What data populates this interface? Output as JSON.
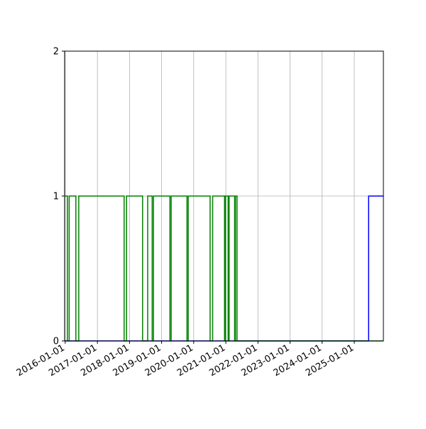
{
  "chart_data": {
    "type": "line",
    "step": "post",
    "title": "",
    "xlabel": "",
    "ylabel": "",
    "x_type": "date",
    "xlim": [
      "2015-12-25",
      "2025-11-28"
    ],
    "ylim": [
      0,
      2
    ],
    "grid": true,
    "x_tick_labels": [
      "2016-01-01",
      "2017-01-01",
      "2018-01-01",
      "2019-01-01",
      "2020-01-01",
      "2021-01-01",
      "2022-01-01",
      "2023-01-01",
      "2024-01-01",
      "2025-01-01"
    ],
    "y_tick_labels": [
      "0",
      "1",
      "2"
    ],
    "series": [
      {
        "color": "#0000ff",
        "points": [
          [
            "2015-12-25",
            0
          ],
          [
            "2025-06-13",
            1
          ],
          [
            "2025-11-28",
            1
          ]
        ]
      },
      {
        "color": "#008000",
        "points": [
          [
            "2016-01-01",
            1
          ],
          [
            "2016-01-26",
            0
          ],
          [
            "2016-02-15",
            1
          ],
          [
            "2016-05-01",
            0
          ],
          [
            "2016-06-03",
            1
          ],
          [
            "2017-11-01",
            0
          ],
          [
            "2017-11-28",
            1
          ],
          [
            "2018-05-30",
            0
          ],
          [
            "2018-07-27",
            1
          ],
          [
            "2018-09-16",
            0
          ],
          [
            "2018-10-01",
            1
          ],
          [
            "2019-04-06",
            0
          ],
          [
            "2019-04-20",
            1
          ],
          [
            "2019-10-17",
            0
          ],
          [
            "2019-10-31",
            1
          ],
          [
            "2020-07-06",
            0
          ],
          [
            "2020-08-04",
            1
          ],
          [
            "2020-12-17",
            0
          ],
          [
            "2020-12-29",
            1
          ],
          [
            "2021-01-27",
            0
          ],
          [
            "2021-02-07",
            1
          ],
          [
            "2021-04-11",
            0
          ],
          [
            "2021-04-20",
            1
          ],
          [
            "2021-05-08",
            0
          ],
          [
            "2025-11-28",
            0
          ]
        ]
      }
    ]
  }
}
